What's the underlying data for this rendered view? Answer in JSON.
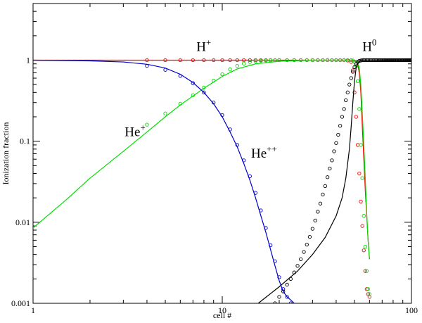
{
  "chart_data": {
    "type": "line",
    "xlabel": "cell #",
    "ylabel": "Ionization fraction",
    "xscale": "log",
    "yscale": "log",
    "xlim": [
      1,
      100
    ],
    "ylim": [
      0.001,
      5
    ],
    "x_tick_labels": [
      {
        "value": 1,
        "label": "1"
      },
      {
        "value": 10,
        "label": "10"
      },
      {
        "value": 100,
        "label": "100"
      }
    ],
    "y_tick_labels": [
      {
        "value": 0.001,
        "label": "0.001"
      },
      {
        "value": 0.01,
        "label": "0.01"
      },
      {
        "value": 0.1,
        "label": "0.1"
      },
      {
        "value": 1,
        "label": "1"
      }
    ],
    "grid": false,
    "annotations": [
      {
        "id": "h-plus",
        "base": "H",
        "sup": "+",
        "x": 7.3,
        "y": 1.3
      },
      {
        "id": "h-zero",
        "base": "H",
        "sup": "0",
        "x": 55,
        "y": 1.3
      },
      {
        "id": "he-plus",
        "base": "He",
        "sup": "+",
        "x": 3.05,
        "y": 0.115
      },
      {
        "id": "he-plus-plus",
        "base": "He",
        "sup": "++",
        "x": 14.2,
        "y": 0.063
      }
    ],
    "series": [
      {
        "id": "h-plus",
        "color": "#ff0000",
        "style": "line",
        "x": [
          1,
          5,
          10,
          20,
          30,
          40,
          45,
          48,
          50,
          51,
          52,
          53,
          54,
          55,
          56,
          57,
          58,
          59,
          60
        ],
        "y": [
          1,
          1,
          1,
          1,
          1,
          1,
          1,
          1,
          0.98,
          0.95,
          0.88,
          0.7,
          0.4,
          0.15,
          0.06,
          0.025,
          0.012,
          0.006,
          0.0035
        ]
      },
      {
        "id": "h-plus-points",
        "color": "#ff0000",
        "style": "points",
        "x": [
          4,
          5,
          6,
          7,
          8,
          9,
          10,
          11,
          12,
          13,
          14,
          15,
          16,
          17,
          18,
          19,
          20,
          22,
          24,
          26,
          28,
          30,
          32,
          34,
          36,
          38,
          40,
          42,
          44,
          46,
          48,
          49,
          50,
          51,
          52,
          53,
          54,
          55,
          56,
          57,
          58,
          59,
          60
        ],
        "y": [
          1,
          1,
          1,
          1,
          1,
          1,
          1,
          1,
          1,
          1,
          1,
          1,
          1,
          1,
          1,
          1,
          1,
          1,
          1,
          1,
          1,
          1,
          1,
          1,
          1,
          1,
          1,
          1,
          1,
          0.99,
          0.95,
          0.75,
          0.4,
          0.2,
          0.09,
          0.04,
          0.018,
          0.009,
          0.0045,
          0.0025,
          0.0015,
          0.0013,
          0.0012
        ]
      },
      {
        "id": "he-plus",
        "color": "#00dd00",
        "style": "line",
        "x": [
          1,
          1.5,
          2,
          3,
          4,
          5,
          6,
          8,
          10,
          12,
          15,
          20,
          30,
          40,
          45,
          48,
          50,
          51,
          52,
          53,
          54,
          55,
          56,
          57,
          58,
          59,
          60
        ],
        "y": [
          0.0085,
          0.019,
          0.035,
          0.075,
          0.13,
          0.2,
          0.28,
          0.45,
          0.63,
          0.78,
          0.9,
          0.97,
          1,
          1,
          1,
          1,
          1,
          0.99,
          0.95,
          0.8,
          0.5,
          0.22,
          0.09,
          0.035,
          0.013,
          0.006,
          0.0035
        ]
      },
      {
        "id": "he-plus-points",
        "color": "#00dd00",
        "style": "points",
        "x": [
          4,
          5,
          6,
          7,
          8,
          9,
          10,
          11,
          12,
          13,
          14,
          15,
          16,
          17,
          18,
          19,
          20,
          22,
          24,
          26,
          28,
          30,
          32,
          34,
          36,
          38,
          40,
          42,
          44,
          46,
          48,
          49,
          50,
          51,
          52,
          53,
          54,
          55,
          56,
          57,
          58,
          59,
          60
        ],
        "y": [
          0.16,
          0.22,
          0.29,
          0.37,
          0.46,
          0.56,
          0.67,
          0.77,
          0.85,
          0.91,
          0.95,
          0.97,
          0.98,
          0.99,
          1,
          1,
          1,
          1,
          1,
          1,
          1,
          1,
          1,
          1,
          1,
          1,
          1,
          1,
          1,
          1,
          1,
          0.99,
          0.95,
          0.85,
          0.55,
          0.25,
          0.09,
          0.035,
          0.012,
          0.005,
          0.0025,
          0.0015,
          0.0013
        ]
      },
      {
        "id": "he-plus-plus",
        "color": "#0000cc",
        "style": "line",
        "x": [
          1,
          2,
          3,
          4,
          5,
          6,
          7,
          8,
          9,
          10,
          11,
          12,
          13,
          14,
          15,
          16,
          17,
          18,
          19,
          20,
          21,
          22,
          23,
          24
        ],
        "y": [
          1,
          0.98,
          0.95,
          0.89,
          0.8,
          0.67,
          0.53,
          0.4,
          0.29,
          0.2,
          0.13,
          0.085,
          0.053,
          0.033,
          0.02,
          0.012,
          0.0075,
          0.0046,
          0.0029,
          0.0019,
          0.0014,
          0.0012,
          0.0011,
          0.001
        ]
      },
      {
        "id": "he-plus-plus-points",
        "color": "#0000cc",
        "style": "points",
        "x": [
          4,
          5,
          6,
          7,
          8,
          9,
          10,
          11,
          12,
          13,
          14,
          15,
          16,
          17,
          18,
          19,
          20,
          21,
          22,
          23
        ],
        "y": [
          0.85,
          0.76,
          0.64,
          0.52,
          0.4,
          0.3,
          0.21,
          0.14,
          0.09,
          0.058,
          0.037,
          0.023,
          0.014,
          0.0085,
          0.0052,
          0.0033,
          0.0021,
          0.0015,
          0.0012,
          0.001
        ]
      },
      {
        "id": "h-zero",
        "color": "#000000",
        "style": "line",
        "x": [
          15.5,
          20,
          25,
          30,
          35,
          40,
          43,
          45,
          47,
          48,
          49,
          50,
          51,
          52,
          53,
          54,
          55,
          56,
          58,
          60,
          70,
          80,
          90,
          100
        ],
        "y": [
          0.001,
          0.0016,
          0.0025,
          0.004,
          0.0065,
          0.012,
          0.02,
          0.035,
          0.08,
          0.15,
          0.3,
          0.55,
          0.8,
          0.92,
          0.97,
          0.99,
          1,
          1,
          1,
          1,
          1,
          1,
          1,
          1
        ]
      },
      {
        "id": "h-zero-points",
        "color": "#000000",
        "style": "points",
        "x": [
          19,
          20,
          21,
          22,
          23,
          24,
          25,
          26,
          27,
          28,
          29,
          30,
          31,
          32,
          33,
          34,
          35,
          36,
          37,
          38,
          39,
          40,
          41,
          42,
          43,
          44,
          45,
          46,
          47,
          48,
          49,
          50,
          51,
          52,
          53,
          54,
          55,
          56,
          57,
          58,
          59,
          60,
          61,
          62,
          63,
          64,
          65,
          66,
          67,
          68,
          69,
          70,
          71,
          72,
          73,
          74,
          75,
          76,
          77,
          78,
          79,
          80,
          81,
          82,
          83,
          84,
          85,
          86,
          87,
          88,
          89,
          90,
          91,
          92,
          93,
          94,
          95,
          96,
          97,
          98,
          99,
          100
        ],
        "y": [
          0.001,
          0.0012,
          0.0014,
          0.0017,
          0.002,
          0.0024,
          0.0029,
          0.0035,
          0.0043,
          0.0053,
          0.0066,
          0.0083,
          0.0105,
          0.0135,
          0.017,
          0.022,
          0.028,
          0.036,
          0.046,
          0.058,
          0.075,
          0.095,
          0.12,
          0.155,
          0.2,
          0.25,
          0.32,
          0.4,
          0.5,
          0.6,
          0.72,
          0.82,
          0.9,
          0.95,
          0.98,
          0.99,
          1,
          1,
          1,
          1,
          1,
          1,
          1,
          1,
          1,
          1,
          1,
          1,
          1,
          1,
          1,
          1,
          1,
          1,
          1,
          1,
          1,
          1,
          1,
          1,
          1,
          1,
          1,
          1,
          1,
          1,
          1,
          1,
          1,
          1,
          1,
          1,
          1,
          1,
          1,
          1,
          1,
          1,
          1,
          1,
          1,
          1
        ]
      }
    ]
  }
}
